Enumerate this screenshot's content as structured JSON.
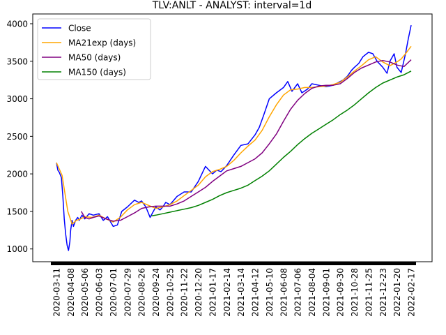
{
  "chart_data": {
    "type": "line",
    "title": "TLV:ANLT - ANALYST: interval=1d",
    "xlabel": "",
    "ylabel": "",
    "x_ticks": [
      "2020-03-11",
      "2020-04-08",
      "2020-05-06",
      "2020-06-03",
      "2020-07-01",
      "2020-07-29",
      "2020-08-26",
      "2020-09-24",
      "2020-10-25",
      "2020-11-22",
      "2020-12-20",
      "2021-01-17",
      "2021-02-14",
      "2021-03-14",
      "2021-04-12",
      "2021-05-10",
      "2021-06-08",
      "2021-07-06",
      "2021-08-04",
      "2021-09-01",
      "2021-09-30",
      "2021-10-28",
      "2021-11-25",
      "2021-12-23",
      "2022-01-20",
      "2022-02-17"
    ],
    "y_ticks": [
      1000,
      1500,
      2000,
      2500,
      3000,
      3500,
      4000
    ],
    "ylim": [
      830,
      4130
    ],
    "legend_position": "upper-left",
    "grid": false,
    "series": [
      {
        "name": "Close",
        "color": "#0000ff",
        "x": [
          0,
          0.1,
          0.2,
          0.35,
          0.45,
          0.55,
          0.65,
          0.75,
          0.85,
          0.95,
          1.0,
          1.1,
          1.2,
          1.35,
          1.5,
          1.6,
          1.8,
          2.0,
          2.3,
          2.6,
          3.0,
          3.3,
          3.6,
          4.0,
          4.3,
          4.6,
          5.0,
          5.5,
          5.8,
          6.0,
          6.3,
          6.6,
          7.0,
          7.3,
          7.5,
          7.7,
          8.0,
          8.5,
          9.0,
          9.5,
          10.0,
          10.5,
          11.0,
          11.3,
          11.6,
          12.0,
          12.5,
          13.0,
          13.5,
          14.0,
          14.3,
          14.6,
          15.0,
          15.5,
          16.0,
          16.3,
          16.6,
          17.0,
          17.3,
          17.7,
          18.0,
          18.5,
          19.0,
          19.5,
          20.0,
          20.2,
          20.5,
          20.8,
          21.0,
          21.3,
          21.6,
          22.0,
          22.3,
          22.6,
          23.0,
          23.3,
          23.5,
          23.8,
          24.0,
          24.3,
          24.6,
          24.8,
          25.0
        ],
        "values": [
          2150,
          2050,
          2020,
          1950,
          1700,
          1400,
          1200,
          1050,
          980,
          1100,
          1250,
          1380,
          1300,
          1380,
          1420,
          1380,
          1450,
          1400,
          1470,
          1450,
          1470,
          1380,
          1430,
          1300,
          1320,
          1500,
          1560,
          1650,
          1620,
          1640,
          1560,
          1420,
          1560,
          1520,
          1560,
          1620,
          1590,
          1700,
          1760,
          1760,
          1900,
          2100,
          2000,
          2050,
          2030,
          2110,
          2250,
          2380,
          2400,
          2520,
          2620,
          2780,
          3000,
          3080,
          3150,
          3230,
          3100,
          3200,
          3080,
          3130,
          3200,
          3180,
          3160,
          3180,
          3230,
          3250,
          3300,
          3380,
          3420,
          3470,
          3560,
          3620,
          3600,
          3500,
          3420,
          3340,
          3500,
          3600,
          3420,
          3350,
          3600,
          3800,
          3980
        ]
      },
      {
        "name": "MA21exp (days)",
        "color": "#ffa500",
        "x": [
          0,
          0.4,
          0.8,
          1.1,
          1.4,
          1.7,
          2.0,
          2.5,
          3.0,
          3.5,
          4.0,
          4.5,
          5.0,
          5.5,
          6.0,
          6.5,
          7.0,
          7.5,
          8.0,
          8.5,
          9.0,
          9.5,
          10.0,
          10.5,
          11.0,
          11.5,
          12.0,
          12.5,
          13.0,
          13.5,
          14.0,
          14.5,
          15.0,
          15.5,
          16.0,
          16.5,
          17.0,
          17.5,
          18.0,
          18.5,
          19.0,
          19.5,
          20.0,
          20.5,
          21.0,
          21.5,
          22.0,
          22.5,
          23.0,
          23.5,
          24.0,
          24.3,
          24.6,
          25.0
        ],
        "values": [
          2150,
          1980,
          1500,
          1330,
          1380,
          1400,
          1430,
          1420,
          1450,
          1400,
          1360,
          1420,
          1520,
          1590,
          1620,
          1580,
          1540,
          1560,
          1590,
          1640,
          1710,
          1780,
          1850,
          1960,
          2030,
          2060,
          2100,
          2180,
          2280,
          2370,
          2450,
          2580,
          2760,
          2920,
          3050,
          3120,
          3130,
          3150,
          3150,
          3160,
          3170,
          3190,
          3220,
          3290,
          3370,
          3440,
          3520,
          3560,
          3490,
          3440,
          3490,
          3530,
          3600,
          3700
        ]
      },
      {
        "name": "MA50 (days)",
        "color": "#800080",
        "x": [
          1.75,
          2.0,
          2.3,
          2.6,
          3.0,
          3.5,
          4.0,
          4.5,
          5.0,
          5.5,
          6.0,
          6.5,
          7.0,
          7.5,
          8.0,
          8.5,
          9.0,
          9.5,
          10.0,
          10.5,
          11.0,
          11.5,
          12.0,
          12.5,
          13.0,
          13.5,
          14.0,
          14.5,
          15.0,
          15.5,
          16.0,
          16.5,
          17.0,
          17.5,
          18.0,
          18.5,
          19.0,
          19.5,
          20.0,
          20.5,
          21.0,
          21.5,
          22.0,
          22.5,
          23.0,
          23.5,
          24.0,
          24.5,
          25.0
        ],
        "values": [
          1500,
          1420,
          1400,
          1420,
          1440,
          1400,
          1370,
          1380,
          1430,
          1480,
          1540,
          1560,
          1570,
          1570,
          1570,
          1600,
          1640,
          1700,
          1760,
          1820,
          1900,
          1970,
          2040,
          2070,
          2100,
          2150,
          2200,
          2280,
          2400,
          2530,
          2700,
          2860,
          2980,
          3070,
          3140,
          3170,
          3180,
          3180,
          3200,
          3270,
          3350,
          3410,
          3450,
          3490,
          3510,
          3490,
          3450,
          3430,
          3520
        ]
      },
      {
        "name": "MA150 (days)",
        "color": "#008000",
        "x": [
          6.7,
          7.0,
          7.5,
          8.0,
          8.5,
          9.0,
          9.5,
          10.0,
          10.5,
          11.0,
          11.5,
          12.0,
          12.5,
          13.0,
          13.5,
          14.0,
          14.5,
          15.0,
          15.5,
          16.0,
          16.5,
          17.0,
          17.5,
          18.0,
          18.5,
          19.0,
          19.5,
          20.0,
          20.5,
          21.0,
          21.5,
          22.0,
          22.5,
          23.0,
          23.5,
          24.0,
          24.5,
          25.0
        ],
        "values": [
          1440,
          1450,
          1470,
          1490,
          1510,
          1530,
          1550,
          1580,
          1620,
          1660,
          1710,
          1750,
          1780,
          1810,
          1850,
          1910,
          1970,
          2040,
          2130,
          2220,
          2300,
          2390,
          2470,
          2540,
          2600,
          2660,
          2720,
          2790,
          2850,
          2920,
          3000,
          3080,
          3150,
          3210,
          3250,
          3290,
          3320,
          3370
        ]
      }
    ]
  }
}
